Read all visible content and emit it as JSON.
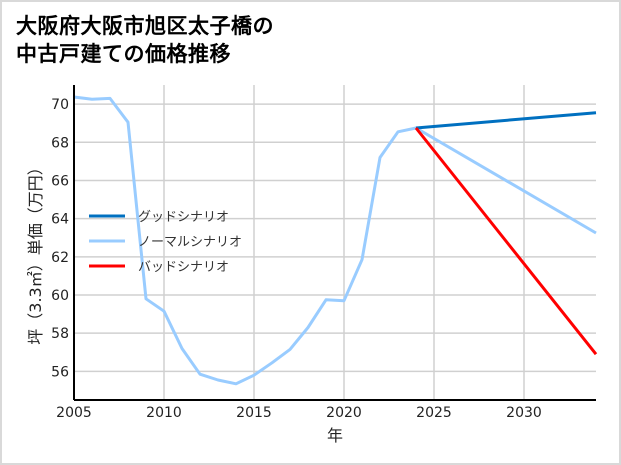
{
  "title_lines": [
    "大阪府大阪市旭区太子橋の",
    "中古戸建ての価格推移"
  ],
  "chart_data": {
    "type": "line",
    "title": "大阪府大阪市旭区太子橋の中古戸建ての価格推移",
    "xlabel": "年",
    "ylabel": "坪（3.3㎡）単価（万円）",
    "xlim": [
      2005,
      2034
    ],
    "ylim": [
      54.5,
      71
    ],
    "x_ticks": [
      2005,
      2010,
      2015,
      2020,
      2025,
      2030
    ],
    "y_ticks": [
      56,
      58,
      60,
      62,
      64,
      66,
      68,
      70
    ],
    "grid": true,
    "legend_position": "center-left",
    "series": [
      {
        "name": "グッドシナリオ",
        "color": "#0070c0",
        "x": [
          2024,
          2034
        ],
        "values": [
          68.75,
          69.55
        ]
      },
      {
        "name": "ノーマルシナリオ",
        "color": "#99ccff",
        "x": [
          2005,
          2006,
          2007,
          2008,
          2009,
          2010,
          2011,
          2012,
          2013,
          2014,
          2015,
          2016,
          2017,
          2018,
          2019,
          2020,
          2021,
          2022,
          2023,
          2024,
          2034
        ],
        "values": [
          70.37,
          70.25,
          70.3,
          69.05,
          59.8,
          59.15,
          57.2,
          55.85,
          55.55,
          55.35,
          55.8,
          56.45,
          57.15,
          58.3,
          59.75,
          59.7,
          61.85,
          67.2,
          68.55,
          68.75,
          63.25
        ]
      },
      {
        "name": "バッドシナリオ",
        "color": "#ff0000",
        "x": [
          2024,
          2034
        ],
        "values": [
          68.75,
          56.9
        ]
      }
    ]
  }
}
